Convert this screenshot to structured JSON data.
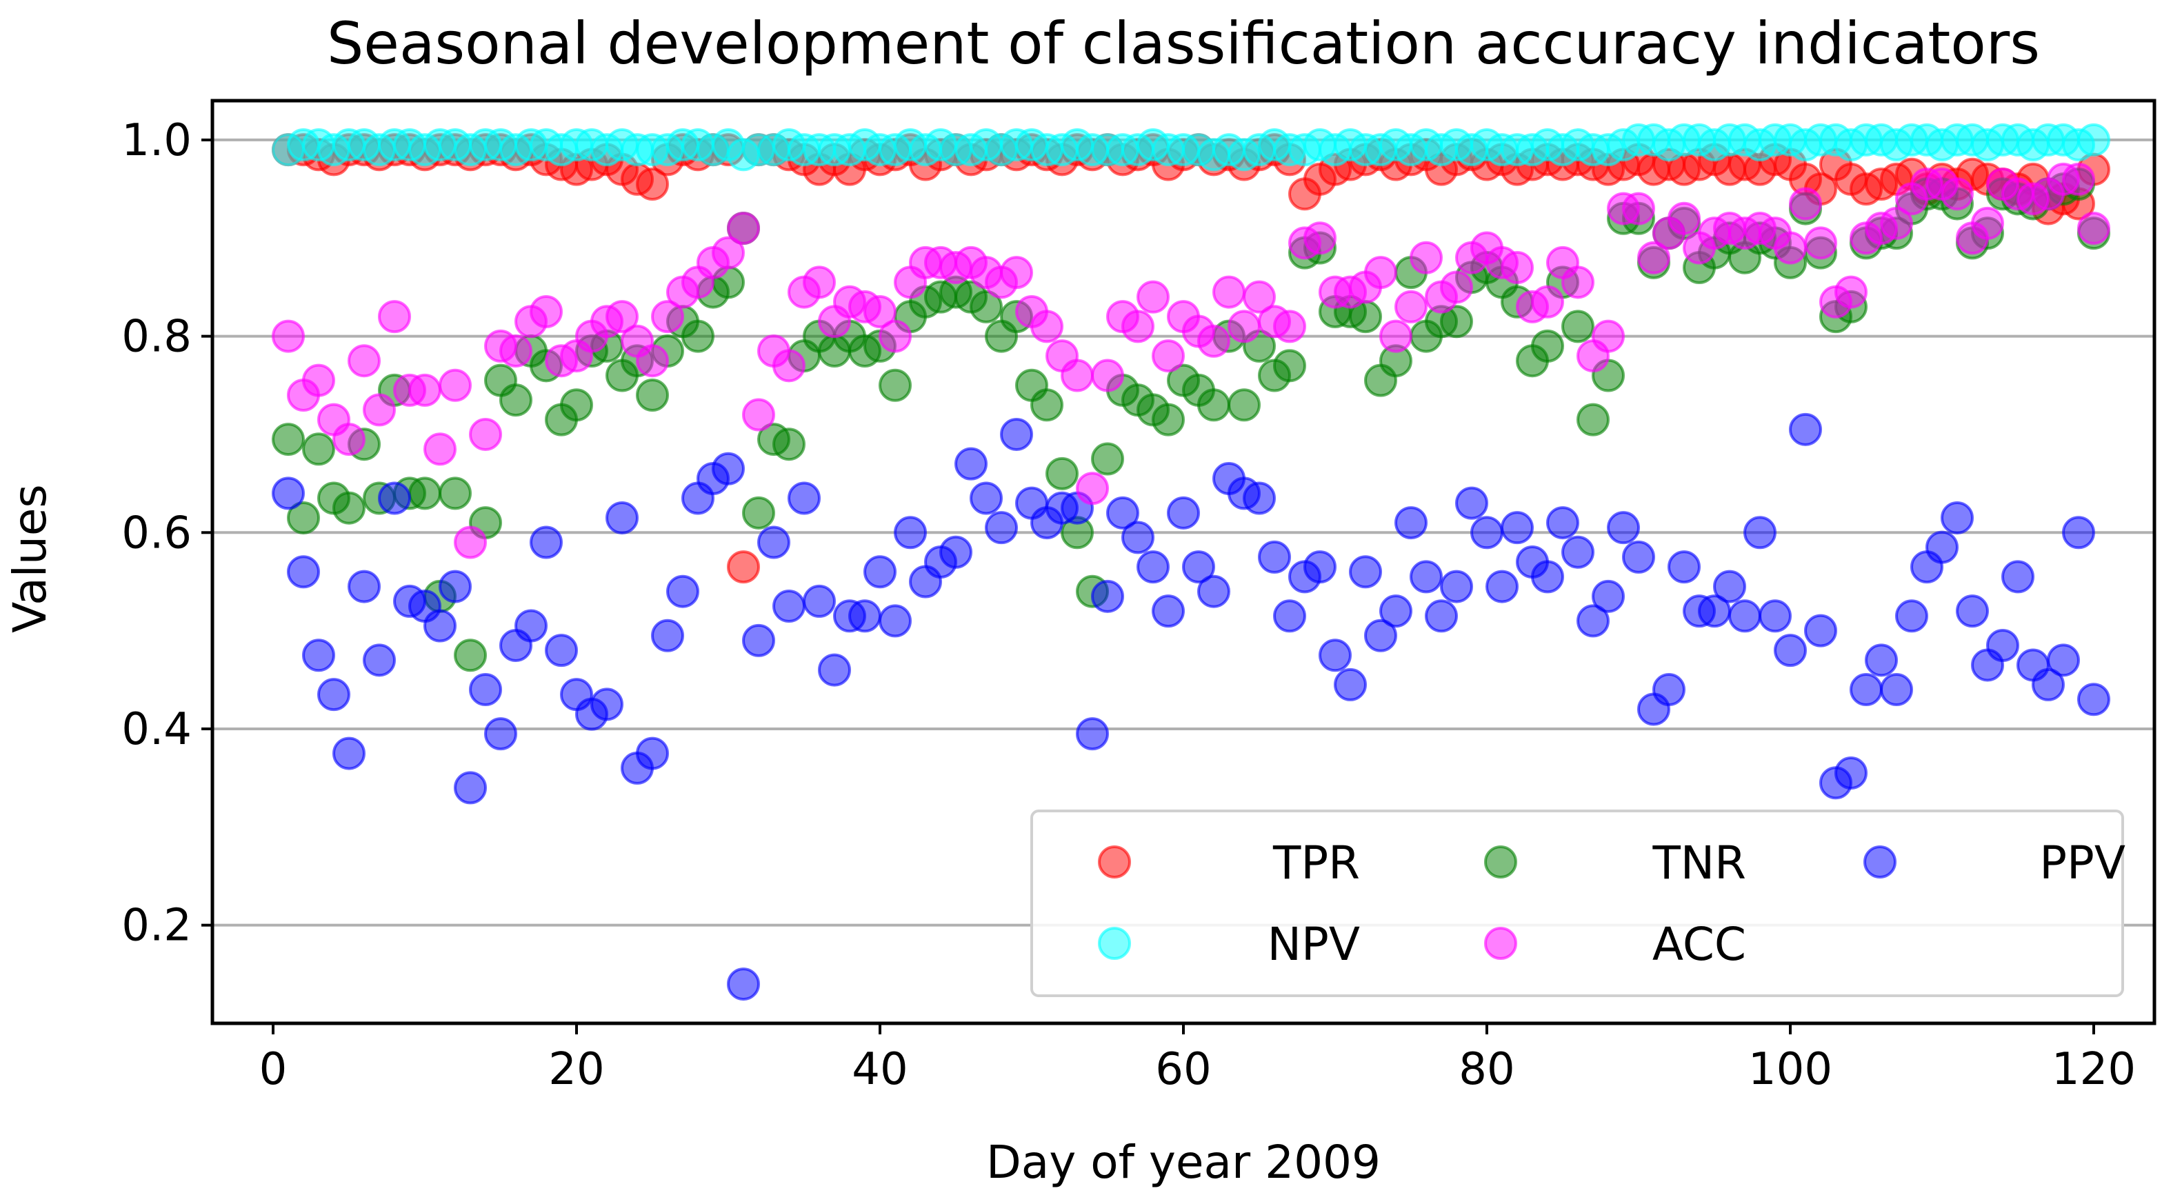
{
  "chart_data": {
    "type": "scatter",
    "title": "Seasonal development of classification accuracy indicators",
    "xlabel": "Day of year 2009",
    "ylabel": "Values",
    "xlim": [
      -4,
      124
    ],
    "ylim": [
      0.1,
      1.04
    ],
    "xticks": [
      0,
      20,
      40,
      60,
      80,
      100,
      120
    ],
    "yticks": [
      0.2,
      0.4,
      0.6,
      0.8,
      1.0
    ],
    "xtick_labels": [
      "0",
      "20",
      "40",
      "60",
      "80",
      "100",
      "120"
    ],
    "ytick_labels": [
      "0.2",
      "0.4",
      "0.6",
      "0.8",
      "1.0"
    ],
    "grid": "horizontal",
    "legend_position": "lower-right",
    "legend_columns": 3,
    "series": [
      {
        "name": "TPR",
        "color": "#ff0000",
        "x": [
          1,
          2,
          3,
          4,
          5,
          6,
          7,
          8,
          9,
          10,
          11,
          12,
          13,
          14,
          15,
          16,
          17,
          18,
          19,
          20,
          21,
          22,
          23,
          24,
          25,
          26,
          27,
          28,
          29,
          30,
          31,
          32,
          33,
          34,
          35,
          36,
          37,
          38,
          39,
          40,
          41,
          42,
          43,
          44,
          45,
          46,
          47,
          48,
          49,
          50,
          51,
          52,
          53,
          54,
          55,
          56,
          57,
          58,
          59,
          60,
          61,
          62,
          63,
          64,
          65,
          66,
          67,
          68,
          69,
          70,
          71,
          72,
          73,
          74,
          75,
          76,
          77,
          78,
          79,
          80,
          81,
          82,
          83,
          84,
          85,
          86,
          87,
          88,
          89,
          90,
          91,
          92,
          93,
          94,
          95,
          96,
          97,
          98,
          99,
          100,
          101,
          102,
          103,
          104,
          105,
          106,
          107,
          108,
          109,
          110,
          111,
          112,
          113,
          114,
          115,
          116,
          117,
          118,
          119,
          120
        ],
        "y": [
          0.99,
          0.99,
          0.985,
          0.98,
          0.99,
          0.99,
          0.985,
          0.99,
          0.99,
          0.985,
          0.99,
          0.99,
          0.985,
          0.99,
          0.99,
          0.985,
          0.99,
          0.98,
          0.975,
          0.97,
          0.975,
          0.98,
          0.97,
          0.96,
          0.955,
          0.98,
          0.99,
          0.985,
          0.99,
          0.99,
          0.565,
          0.99,
          0.99,
          0.985,
          0.98,
          0.97,
          0.98,
          0.97,
          0.985,
          0.98,
          0.985,
          0.99,
          0.975,
          0.985,
          0.99,
          0.98,
          0.985,
          0.99,
          0.985,
          0.99,
          0.985,
          0.98,
          0.99,
          0.985,
          0.99,
          0.98,
          0.985,
          0.99,
          0.975,
          0.985,
          0.99,
          0.98,
          0.985,
          0.975,
          0.985,
          0.99,
          0.98,
          0.945,
          0.96,
          0.97,
          0.975,
          0.98,
          0.985,
          0.975,
          0.98,
          0.985,
          0.97,
          0.98,
          0.985,
          0.975,
          0.98,
          0.97,
          0.975,
          0.98,
          0.975,
          0.98,
          0.975,
          0.97,
          0.975,
          0.98,
          0.97,
          0.975,
          0.97,
          0.975,
          0.98,
          0.97,
          0.975,
          0.97,
          0.98,
          0.975,
          0.96,
          0.95,
          0.975,
          0.96,
          0.95,
          0.955,
          0.96,
          0.965,
          0.95,
          0.96,
          0.955,
          0.965,
          0.96,
          0.955,
          0.95,
          0.96,
          0.93,
          0.94,
          0.935,
          0.97
        ]
      },
      {
        "name": "TNR",
        "color": "#008000",
        "x": [
          1,
          2,
          3,
          4,
          5,
          6,
          7,
          8,
          9,
          10,
          11,
          12,
          13,
          14,
          15,
          16,
          17,
          18,
          19,
          20,
          21,
          22,
          23,
          24,
          25,
          26,
          27,
          28,
          29,
          30,
          31,
          32,
          33,
          34,
          35,
          36,
          37,
          38,
          39,
          40,
          41,
          42,
          43,
          44,
          45,
          46,
          47,
          48,
          49,
          50,
          51,
          52,
          53,
          54,
          55,
          56,
          57,
          58,
          59,
          60,
          61,
          62,
          63,
          64,
          65,
          66,
          67,
          68,
          69,
          70,
          71,
          72,
          73,
          74,
          75,
          76,
          77,
          78,
          79,
          80,
          81,
          82,
          83,
          84,
          85,
          86,
          87,
          88,
          89,
          90,
          91,
          92,
          93,
          94,
          95,
          96,
          97,
          98,
          99,
          100,
          101,
          102,
          103,
          104,
          105,
          106,
          107,
          108,
          109,
          110,
          111,
          112,
          113,
          114,
          115,
          116,
          117,
          118,
          119,
          120
        ],
        "y": [
          0.695,
          0.615,
          0.685,
          0.635,
          0.625,
          0.69,
          0.635,
          0.745,
          0.64,
          0.64,
          0.535,
          0.64,
          0.475,
          0.61,
          0.755,
          0.735,
          0.785,
          0.77,
          0.715,
          0.73,
          0.785,
          0.79,
          0.76,
          0.775,
          0.74,
          0.785,
          0.815,
          0.8,
          0.845,
          0.855,
          0.91,
          0.62,
          0.695,
          0.69,
          0.78,
          0.8,
          0.785,
          0.8,
          0.785,
          0.79,
          0.75,
          0.82,
          0.835,
          0.84,
          0.845,
          0.84,
          0.83,
          0.8,
          0.82,
          0.75,
          0.73,
          0.66,
          0.6,
          0.54,
          0.675,
          0.745,
          0.735,
          0.725,
          0.715,
          0.755,
          0.745,
          0.73,
          0.8,
          0.73,
          0.79,
          0.76,
          0.77,
          0.885,
          0.89,
          0.825,
          0.825,
          0.82,
          0.755,
          0.775,
          0.865,
          0.8,
          0.815,
          0.815,
          0.86,
          0.87,
          0.855,
          0.835,
          0.775,
          0.79,
          0.855,
          0.81,
          0.715,
          0.76,
          0.92,
          0.92,
          0.875,
          0.905,
          0.915,
          0.87,
          0.885,
          0.9,
          0.88,
          0.9,
          0.895,
          0.875,
          0.93,
          0.885,
          0.82,
          0.83,
          0.895,
          0.905,
          0.905,
          0.93,
          0.945,
          0.945,
          0.935,
          0.895,
          0.905,
          0.945,
          0.94,
          0.935,
          0.945,
          0.95,
          0.955,
          0.905
        ]
      },
      {
        "name": "PPV",
        "color": "#0000ff",
        "x": [
          1,
          2,
          3,
          4,
          5,
          6,
          7,
          8,
          9,
          10,
          11,
          12,
          13,
          14,
          15,
          16,
          17,
          18,
          19,
          20,
          21,
          22,
          23,
          24,
          25,
          26,
          27,
          28,
          29,
          30,
          31,
          32,
          33,
          34,
          35,
          36,
          37,
          38,
          39,
          40,
          41,
          42,
          43,
          44,
          45,
          46,
          47,
          48,
          49,
          50,
          51,
          52,
          53,
          54,
          55,
          56,
          57,
          58,
          59,
          60,
          61,
          62,
          63,
          64,
          65,
          66,
          67,
          68,
          69,
          70,
          71,
          72,
          73,
          74,
          75,
          76,
          77,
          78,
          79,
          80,
          81,
          82,
          83,
          84,
          85,
          86,
          87,
          88,
          89,
          90,
          91,
          92,
          93,
          94,
          95,
          96,
          97,
          98,
          99,
          100,
          101,
          102,
          103,
          104,
          105,
          106,
          107,
          108,
          109,
          110,
          111,
          112,
          113,
          114,
          115,
          116,
          117,
          118,
          119,
          120
        ],
        "y": [
          0.64,
          0.56,
          0.475,
          0.435,
          0.375,
          0.545,
          0.47,
          0.635,
          0.53,
          0.525,
          0.505,
          0.545,
          0.34,
          0.44,
          0.395,
          0.485,
          0.505,
          0.59,
          0.48,
          0.435,
          0.415,
          0.425,
          0.615,
          0.36,
          0.375,
          0.495,
          0.54,
          0.635,
          0.655,
          0.665,
          0.14,
          0.49,
          0.59,
          0.525,
          0.635,
          0.53,
          0.46,
          0.515,
          0.515,
          0.56,
          0.51,
          0.6,
          0.55,
          0.57,
          0.58,
          0.67,
          0.635,
          0.605,
          0.7,
          0.63,
          0.61,
          0.625,
          0.625,
          0.395,
          0.535,
          0.62,
          0.595,
          0.565,
          0.52,
          0.62,
          0.565,
          0.54,
          0.655,
          0.64,
          0.635,
          0.575,
          0.515,
          0.555,
          0.565,
          0.475,
          0.445,
          0.56,
          0.495,
          0.52,
          0.61,
          0.555,
          0.515,
          0.545,
          0.63,
          0.6,
          0.545,
          0.605,
          0.57,
          0.555,
          0.61,
          0.58,
          0.51,
          0.535,
          0.605,
          0.575,
          0.42,
          0.44,
          0.565,
          0.52,
          0.52,
          0.545,
          0.515,
          0.6,
          0.515,
          0.48,
          0.705,
          0.5,
          0.345,
          0.355,
          0.44,
          0.47,
          0.44,
          0.515,
          0.565,
          0.585,
          0.615,
          0.52,
          0.465,
          0.485,
          0.555,
          0.465,
          0.445,
          0.47,
          0.6,
          0.43
        ]
      },
      {
        "name": "NPV",
        "color": "#00ffff",
        "x": [
          1,
          2,
          3,
          4,
          5,
          6,
          7,
          8,
          9,
          10,
          11,
          12,
          13,
          14,
          15,
          16,
          17,
          18,
          19,
          20,
          21,
          22,
          23,
          24,
          25,
          26,
          27,
          28,
          29,
          30,
          31,
          32,
          33,
          34,
          35,
          36,
          37,
          38,
          39,
          40,
          41,
          42,
          43,
          44,
          45,
          46,
          47,
          48,
          49,
          50,
          51,
          52,
          53,
          54,
          55,
          56,
          57,
          58,
          59,
          60,
          61,
          62,
          63,
          64,
          65,
          66,
          67,
          68,
          69,
          70,
          71,
          72,
          73,
          74,
          75,
          76,
          77,
          78,
          79,
          80,
          81,
          82,
          83,
          84,
          85,
          86,
          87,
          88,
          89,
          90,
          91,
          92,
          93,
          94,
          95,
          96,
          97,
          98,
          99,
          100,
          101,
          102,
          103,
          104,
          105,
          106,
          107,
          108,
          109,
          110,
          111,
          112,
          113,
          114,
          115,
          116,
          117,
          118,
          119,
          120
        ],
        "y": [
          0.99,
          0.995,
          0.995,
          0.99,
          0.995,
          0.995,
          0.99,
          0.995,
          0.995,
          0.99,
          0.995,
          0.995,
          0.99,
          0.995,
          0.995,
          0.99,
          0.995,
          0.995,
          0.99,
          0.995,
          0.995,
          0.99,
          0.995,
          0.99,
          0.99,
          0.99,
          0.995,
          0.995,
          0.99,
          0.995,
          0.985,
          0.99,
          0.99,
          0.995,
          0.99,
          0.99,
          0.99,
          0.99,
          0.995,
          0.99,
          0.99,
          0.995,
          0.99,
          0.995,
          0.99,
          0.99,
          0.995,
          0.99,
          0.995,
          0.995,
          0.99,
          0.99,
          0.995,
          0.99,
          0.99,
          0.99,
          0.99,
          0.995,
          0.99,
          0.99,
          0.99,
          0.985,
          0.99,
          0.985,
          0.99,
          0.995,
          0.99,
          0.99,
          0.995,
          0.99,
          0.995,
          0.99,
          0.99,
          0.995,
          0.99,
          0.995,
          0.99,
          0.995,
          0.99,
          0.995,
          0.99,
          0.99,
          0.99,
          0.995,
          0.99,
          0.995,
          0.99,
          0.99,
          0.995,
          1.0,
          1.0,
          0.995,
          1.0,
          1.0,
          0.995,
          1.0,
          1.0,
          0.995,
          1.0,
          1.0,
          0.995,
          1.0,
          1.0,
          0.995,
          1.0,
          1.0,
          0.995,
          1.0,
          1.0,
          0.995,
          1.0,
          1.0,
          0.995,
          1.0,
          1.0,
          0.995,
          1.0,
          1.0,
          0.995,
          1.0
        ]
      },
      {
        "name": "ACC",
        "color": "#ff00ff",
        "x": [
          1,
          2,
          3,
          4,
          5,
          6,
          7,
          8,
          9,
          10,
          11,
          12,
          13,
          14,
          15,
          16,
          17,
          18,
          19,
          20,
          21,
          22,
          23,
          24,
          25,
          26,
          27,
          28,
          29,
          30,
          31,
          32,
          33,
          34,
          35,
          36,
          37,
          38,
          39,
          40,
          41,
          42,
          43,
          44,
          45,
          46,
          47,
          48,
          49,
          50,
          51,
          52,
          53,
          54,
          55,
          56,
          57,
          58,
          59,
          60,
          61,
          62,
          63,
          64,
          65,
          66,
          67,
          68,
          69,
          70,
          71,
          72,
          73,
          74,
          75,
          76,
          77,
          78,
          79,
          80,
          81,
          82,
          83,
          84,
          85,
          86,
          87,
          88,
          89,
          90,
          91,
          92,
          93,
          94,
          95,
          96,
          97,
          98,
          99,
          100,
          101,
          102,
          103,
          104,
          105,
          106,
          107,
          108,
          109,
          110,
          111,
          112,
          113,
          114,
          115,
          116,
          117,
          118,
          119,
          120
        ],
        "y": [
          0.8,
          0.74,
          0.755,
          0.715,
          0.695,
          0.775,
          0.725,
          0.82,
          0.745,
          0.745,
          0.685,
          0.75,
          0.59,
          0.7,
          0.79,
          0.785,
          0.815,
          0.825,
          0.775,
          0.78,
          0.8,
          0.815,
          0.82,
          0.795,
          0.775,
          0.82,
          0.845,
          0.855,
          0.875,
          0.885,
          0.91,
          0.72,
          0.785,
          0.77,
          0.845,
          0.855,
          0.815,
          0.835,
          0.83,
          0.825,
          0.8,
          0.855,
          0.875,
          0.875,
          0.87,
          0.875,
          0.865,
          0.855,
          0.865,
          0.825,
          0.81,
          0.78,
          0.76,
          0.645,
          0.76,
          0.82,
          0.81,
          0.84,
          0.78,
          0.82,
          0.805,
          0.795,
          0.845,
          0.81,
          0.84,
          0.815,
          0.81,
          0.895,
          0.9,
          0.845,
          0.845,
          0.85,
          0.865,
          0.8,
          0.83,
          0.88,
          0.84,
          0.85,
          0.88,
          0.89,
          0.875,
          0.87,
          0.83,
          0.835,
          0.875,
          0.855,
          0.78,
          0.8,
          0.93,
          0.93,
          0.88,
          0.905,
          0.92,
          0.89,
          0.905,
          0.91,
          0.905,
          0.91,
          0.905,
          0.89,
          0.935,
          0.895,
          0.835,
          0.845,
          0.9,
          0.91,
          0.915,
          0.94,
          0.955,
          0.955,
          0.945,
          0.9,
          0.915,
          0.955,
          0.945,
          0.94,
          0.945,
          0.96,
          0.96,
          0.91
        ]
      }
    ]
  }
}
